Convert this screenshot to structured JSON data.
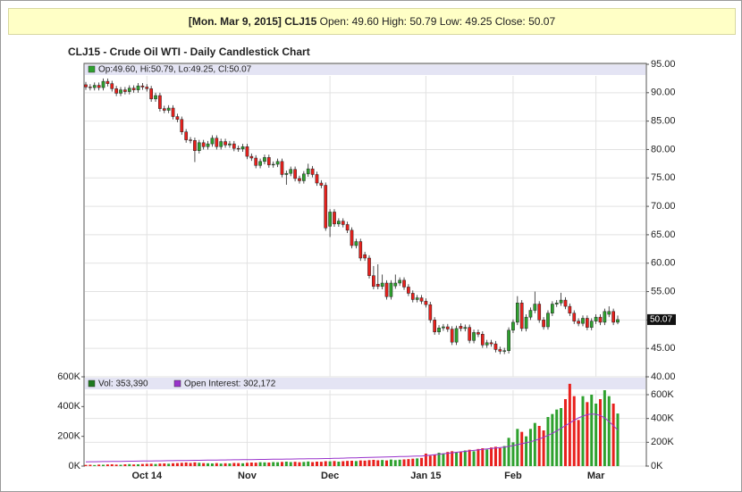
{
  "header": {
    "date": "[Mon. Mar 9, 2015]",
    "symbol": "CLJ15",
    "quote": "Open: 49.60 High: 50.79 Low: 49.25 Close: 50.07"
  },
  "chart_data": {
    "type": "candlestick",
    "title": "CLJ15 - Crude Oil WTI - Daily Candlestick Chart",
    "legend": "Op:49.60, Hi:50.79, Lo:49.25, Cl:50.07",
    "up_color": "#2ea12e",
    "down_color": "#e8201c",
    "grid": true,
    "categories": [
      null,
      null,
      null,
      null,
      null,
      null,
      null,
      null,
      null,
      null,
      null,
      null,
      null,
      null,
      "Oct 14",
      null,
      null,
      null,
      null,
      null,
      null,
      null,
      null,
      null,
      null,
      null,
      null,
      null,
      null,
      null,
      null,
      null,
      null,
      null,
      null,
      null,
      null,
      "Nov",
      null,
      null,
      null,
      null,
      null,
      null,
      null,
      null,
      null,
      null,
      null,
      null,
      null,
      null,
      null,
      null,
      null,
      null,
      "Dec",
      null,
      null,
      null,
      null,
      null,
      null,
      null,
      null,
      null,
      null,
      null,
      null,
      null,
      null,
      null,
      null,
      null,
      null,
      null,
      null,
      null,
      "Jan 15",
      null,
      null,
      null,
      null,
      null,
      null,
      null,
      null,
      null,
      null,
      null,
      null,
      null,
      null,
      null,
      null,
      null,
      null,
      null,
      "Feb",
      null,
      null,
      null,
      null,
      null,
      null,
      null,
      null,
      null,
      null,
      null,
      null,
      null,
      null,
      null,
      null,
      null,
      null,
      "Mar",
      null,
      null,
      null,
      null,
      null
    ],
    "open": [
      91.4,
      91.0,
      90.9,
      91.3,
      90.9,
      92.0,
      91.6,
      90.7,
      89.9,
      90.5,
      90.2,
      90.8,
      90.5,
      91.2,
      91.0,
      90.7,
      88.9,
      89.5,
      87.2,
      86.9,
      87.3,
      85.8,
      85.3,
      83.1,
      81.7,
      81.6,
      79.8,
      81.2,
      80.5,
      81.0,
      82.0,
      80.5,
      81.4,
      80.8,
      81.0,
      80.2,
      80.1,
      80.5,
      78.8,
      78.5,
      77.2,
      77.9,
      78.6,
      77.3,
      77.4,
      77.9,
      75.6,
      75.8,
      76.5,
      74.9,
      74.5,
      75.7,
      76.6,
      75.6,
      74.1,
      73.7,
      66.5,
      69.0,
      66.9,
      67.4,
      66.8,
      65.8,
      63.1,
      63.8,
      61.5,
      60.9,
      57.8,
      56.3,
      55.9,
      56.5,
      54.1,
      56.0,
      56.5,
      57.0,
      55.8,
      54.7,
      53.6,
      53.9,
      53.3,
      52.7,
      50.0,
      47.9,
      48.6,
      48.8,
      48.4,
      46.1,
      48.9,
      48.5,
      48.7,
      46.4,
      47.8,
      47.5,
      45.6,
      46.0,
      45.8,
      44.8,
      44.5,
      44.6,
      48.2,
      49.6,
      53.0,
      48.5,
      50.5,
      51.7,
      52.8,
      50.0,
      48.8,
      51.2,
      52.8,
      53.0,
      53.5,
      52.4,
      51.2,
      49.8,
      49.4,
      50.3,
      48.7,
      49.8,
      50.5,
      49.6,
      51.0,
      51.5,
      49.6
    ],
    "high": [
      91.9,
      91.5,
      91.8,
      91.8,
      92.5,
      92.5,
      92.1,
      91.2,
      91.0,
      91.0,
      91.3,
      91.3,
      91.7,
      91.7,
      91.5,
      91.2,
      90.0,
      90.0,
      87.7,
      87.8,
      87.8,
      86.3,
      85.8,
      83.6,
      82.2,
      82.1,
      81.7,
      81.7,
      81.5,
      82.5,
      82.5,
      81.9,
      81.9,
      81.5,
      81.5,
      80.7,
      81.0,
      81.0,
      79.3,
      79.0,
      78.4,
      79.1,
      79.1,
      77.9,
      78.4,
      78.4,
      76.3,
      77.0,
      77.0,
      75.4,
      76.2,
      77.5,
      77.1,
      76.1,
      74.6,
      74.2,
      69.5,
      69.5,
      67.9,
      67.9,
      67.3,
      66.3,
      64.3,
      64.3,
      62.0,
      61.4,
      59.5,
      59.8,
      58.0,
      57.0,
      57.0,
      58.0,
      57.5,
      57.5,
      56.3,
      55.2,
      54.4,
      54.4,
      53.8,
      53.2,
      50.5,
      49.1,
      49.3,
      49.3,
      48.9,
      49.0,
      49.4,
      49.2,
      49.2,
      48.3,
      48.3,
      48.0,
      46.5,
      46.5,
      46.3,
      45.3,
      45.1,
      48.7,
      50.1,
      54.2,
      53.5,
      51.0,
      52.2,
      55.0,
      53.3,
      50.5,
      51.7,
      53.3,
      53.5,
      54.8,
      54.0,
      52.9,
      51.7,
      50.3,
      50.8,
      50.8,
      50.3,
      51.0,
      51.0,
      52.0,
      52.4,
      52.0,
      50.79
    ],
    "low": [
      90.5,
      90.4,
      90.4,
      90.4,
      90.4,
      91.1,
      90.2,
      89.4,
      89.4,
      89.7,
      89.7,
      90.0,
      90.0,
      90.5,
      90.2,
      88.4,
      88.4,
      86.7,
      86.4,
      86.4,
      85.3,
      84.8,
      82.6,
      81.2,
      81.1,
      77.8,
      79.3,
      80.0,
      80.0,
      80.5,
      80.0,
      80.0,
      80.3,
      80.3,
      79.7,
      79.6,
      79.6,
      78.3,
      78.0,
      76.7,
      76.7,
      77.4,
      76.8,
      76.8,
      76.9,
      75.1,
      73.8,
      75.3,
      74.4,
      74.0,
      74.0,
      75.2,
      75.1,
      73.6,
      73.2,
      65.7,
      64.6,
      66.4,
      66.4,
      66.3,
      65.3,
      62.6,
      62.6,
      60.4,
      60.4,
      57.3,
      55.4,
      55.4,
      55.4,
      53.6,
      53.6,
      55.5,
      56.0,
      55.3,
      54.2,
      53.1,
      53.1,
      52.8,
      52.2,
      49.5,
      47.4,
      47.4,
      48.1,
      47.9,
      45.6,
      45.6,
      48.0,
      48.0,
      45.9,
      45.9,
      47.0,
      45.1,
      45.1,
      45.3,
      44.3,
      44.0,
      44.0,
      44.1,
      47.7,
      49.1,
      48.0,
      48.0,
      50.0,
      51.2,
      49.5,
      48.3,
      48.3,
      50.7,
      52.3,
      52.5,
      51.9,
      50.7,
      49.3,
      48.9,
      48.9,
      48.2,
      48.2,
      49.3,
      49.1,
      49.1,
      50.5,
      49.1,
      49.25
    ],
    "close": [
      91.0,
      90.9,
      91.3,
      90.9,
      92.0,
      91.6,
      90.7,
      89.9,
      90.5,
      90.2,
      90.8,
      90.5,
      91.2,
      91.0,
      90.7,
      88.9,
      89.5,
      87.2,
      86.9,
      87.3,
      85.8,
      85.3,
      83.1,
      81.7,
      81.6,
      79.8,
      81.2,
      80.5,
      81.0,
      82.0,
      80.5,
      81.4,
      80.8,
      81.0,
      80.2,
      80.1,
      80.5,
      78.8,
      78.5,
      77.2,
      77.9,
      78.6,
      77.3,
      77.4,
      77.9,
      75.6,
      75.8,
      76.5,
      74.9,
      74.5,
      75.7,
      76.6,
      75.6,
      74.1,
      73.7,
      66.2,
      69.0,
      66.9,
      67.4,
      66.8,
      65.8,
      63.1,
      63.8,
      60.9,
      60.9,
      57.8,
      55.9,
      55.9,
      56.5,
      54.1,
      56.5,
      56.5,
      57.0,
      55.8,
      54.7,
      53.6,
      53.9,
      53.3,
      52.7,
      50.0,
      47.9,
      48.6,
      48.8,
      48.4,
      46.1,
      48.5,
      48.5,
      48.7,
      46.4,
      47.8,
      47.5,
      45.6,
      46.0,
      45.8,
      44.8,
      44.5,
      44.6,
      48.2,
      49.6,
      53.0,
      48.5,
      50.5,
      51.7,
      52.8,
      50.0,
      48.8,
      51.2,
      52.8,
      53.0,
      53.5,
      52.4,
      51.2,
      49.8,
      49.4,
      50.3,
      48.7,
      49.8,
      50.5,
      49.6,
      51.5,
      51.5,
      49.6,
      50.07
    ],
    "ylim": [
      40,
      95
    ],
    "yticks": [
      {
        "value": 40,
        "label": "40.00"
      },
      {
        "value": 45,
        "label": "45.00"
      },
      {
        "value": 50,
        "label": "50.00"
      },
      {
        "value": 55,
        "label": "55.00"
      },
      {
        "value": 60,
        "label": "60.00"
      },
      {
        "value": 65,
        "label": "65.00"
      },
      {
        "value": 70,
        "label": "70.00"
      },
      {
        "value": 75,
        "label": "75.00"
      },
      {
        "value": 80,
        "label": "80.00"
      },
      {
        "value": 85,
        "label": "85.00"
      },
      {
        "value": 90,
        "label": "90.00"
      },
      {
        "value": 95,
        "label": "95.00"
      }
    ],
    "volume_ylim": [
      0,
      600000
    ],
    "volume_yticks": [
      {
        "value": 0,
        "label": "0K"
      },
      {
        "value": 200000,
        "label": "200K"
      },
      {
        "value": 400000,
        "label": "400K"
      },
      {
        "value": 600000,
        "label": "600K"
      }
    ],
    "y2lim": [
      0,
      750000
    ],
    "y2ticks": [
      {
        "value": 0,
        "label": "0K"
      },
      {
        "value": 200000,
        "label": "200K"
      },
      {
        "value": 400000,
        "label": "400K"
      },
      {
        "value": 600000,
        "label": "600K"
      }
    ],
    "series": [
      {
        "name": "Vol: 353,390",
        "color": "#1f7a1f",
        "values": [
          8000,
          9000,
          7000,
          10000,
          9000,
          11000,
          12000,
          10000,
          9000,
          12000,
          13000,
          11000,
          12000,
          14000,
          15000,
          16000,
          14000,
          17000,
          18000,
          16000,
          19000,
          20000,
          22000,
          24000,
          21000,
          25000,
          22000,
          20000,
          19000,
          18000,
          20000,
          17000,
          19000,
          18000,
          21000,
          20000,
          19000,
          22000,
          24000,
          23000,
          26000,
          25000,
          24000,
          27000,
          26000,
          28000,
          30000,
          27000,
          29000,
          26000,
          28000,
          31000,
          27000,
          30000,
          29000,
          33000,
          32000,
          34000,
          30000,
          33000,
          35000,
          36000,
          34000,
          38000,
          37000,
          40000,
          42000,
          39000,
          41000,
          38000,
          44000,
          40000,
          43000,
          45000,
          47000,
          50000,
          52000,
          55000,
          84000,
          70000,
          75000,
          90000,
          85000,
          95000,
          100000,
          92000,
          98000,
          105000,
          110000,
          100000,
          115000,
          120000,
          112000,
          125000,
          130000,
          122000,
          135000,
          190000,
          160000,
          250000,
          230000,
          200000,
          250000,
          290000,
          270000,
          240000,
          330000,
          350000,
          380000,
          390000,
          450000,
          553000,
          470000,
          310000,
          470000,
          430000,
          480000,
          420000,
          450000,
          510000,
          470000,
          420000,
          353390
        ]
      },
      {
        "name": "Open Interest: 302,172",
        "color": "#9933cc",
        "axis": "y2",
        "values": [
          36000,
          36500,
          37000,
          37500,
          38000,
          38500,
          39000,
          39500,
          40000,
          40500,
          41000,
          41500,
          42000,
          42500,
          43000,
          43500,
          44000,
          44500,
          45000,
          45500,
          46000,
          46500,
          47000,
          47500,
          48000,
          48500,
          49000,
          49500,
          50000,
          50500,
          51000,
          51500,
          52000,
          52500,
          53000,
          53500,
          54000,
          54500,
          55000,
          55500,
          56000,
          56500,
          57000,
          57500,
          58000,
          58500,
          59000,
          59500,
          60000,
          60500,
          61000,
          61500,
          62000,
          62500,
          63000,
          63500,
          64000,
          65000,
          66000,
          67000,
          68000,
          69000,
          70000,
          71000,
          72000,
          73000,
          74000,
          75000,
          76000,
          77000,
          78000,
          79000,
          80000,
          81000,
          82000,
          83000,
          84000,
          85000,
          88000,
          92000,
          96000,
          100000,
          104000,
          108000,
          112000,
          116000,
          120000,
          124000,
          128000,
          132000,
          136000,
          140000,
          144000,
          148000,
          152000,
          156000,
          160000,
          166000,
          172000,
          180000,
          188000,
          196000,
          205000,
          215000,
          228000,
          242000,
          258000,
          275000,
          295000,
          318000,
          340000,
          362000,
          385000,
          405000,
          420000,
          432000,
          438000,
          435000,
          425000,
          405000,
          375000,
          340000,
          302172
        ]
      }
    ]
  }
}
